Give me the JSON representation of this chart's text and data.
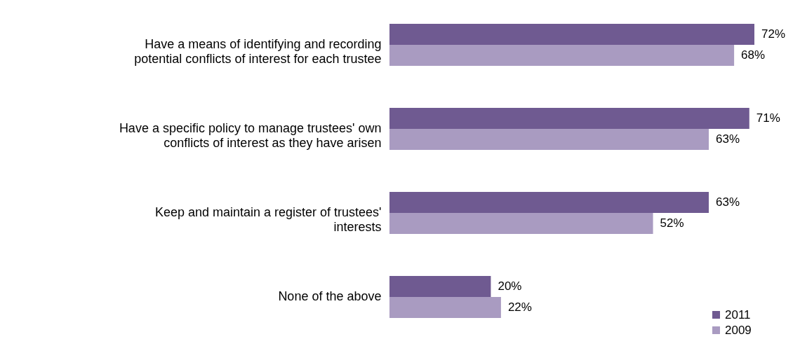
{
  "chart_data": {
    "type": "bar",
    "orientation": "horizontal",
    "categories": [
      "Have a means of identifying and recording potential conflicts of interest for each trustee",
      "Have a specific policy to manage trustees' own conflicts of interest as they have arisen",
      "Keep and maintain a register of trustees' interests",
      "None of the above"
    ],
    "series": [
      {
        "name": "2011",
        "color": "#6f5a91",
        "values": [
          72,
          71,
          63,
          20
        ],
        "value_labels": [
          "72%",
          "71%",
          "63%",
          "20%"
        ]
      },
      {
        "name": "2009",
        "color": "#a99bc1",
        "values": [
          68,
          63,
          52,
          22
        ],
        "value_labels": [
          "68%",
          "63%",
          "52%",
          "22%"
        ]
      }
    ],
    "legend": "bottom right",
    "grid": false
  }
}
